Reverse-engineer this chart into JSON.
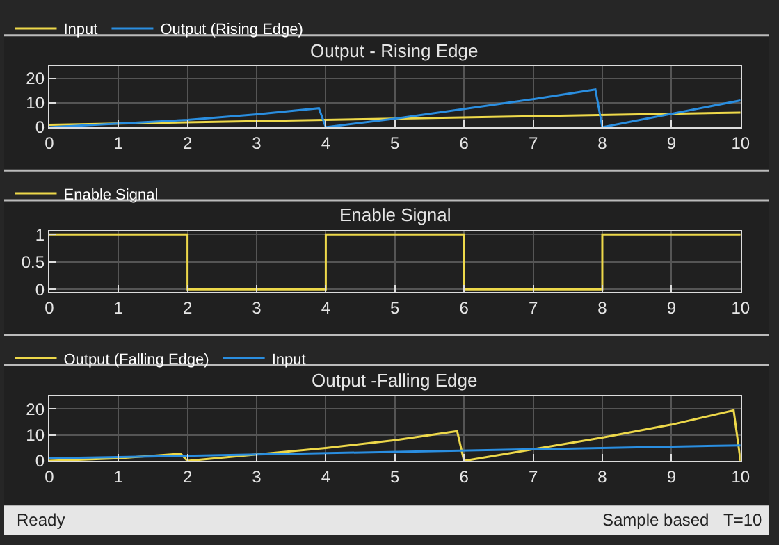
{
  "chart_data": [
    {
      "type": "line",
      "title": "Output - Rising Edge",
      "legend": "top left",
      "grid": true,
      "xlim": [
        0,
        10
      ],
      "xticks": [
        0,
        1,
        2,
        3,
        4,
        5,
        6,
        7,
        8,
        9,
        10
      ],
      "ylim": [
        0,
        25
      ],
      "yticks": [
        0,
        10,
        20
      ],
      "series": [
        {
          "name": "Input",
          "color": "#edd84a",
          "x": [
            0,
            10
          ],
          "values": [
            1,
            6
          ]
        },
        {
          "name": "Output (Rising Edge)",
          "color": "#2a8ee0",
          "x": [
            0,
            1,
            2,
            3,
            3.9,
            4,
            5,
            6,
            7,
            7.9,
            8,
            9,
            10
          ],
          "values": [
            0,
            1.5,
            3,
            5.3,
            7.8,
            0,
            3.5,
            7.5,
            11.5,
            15.5,
            0,
            5.5,
            11
          ]
        }
      ]
    },
    {
      "type": "step",
      "title": "Enable Signal",
      "legend": "top left",
      "grid": true,
      "xlim": [
        0,
        10
      ],
      "xticks": [
        0,
        1,
        2,
        3,
        4,
        5,
        6,
        7,
        8,
        9,
        10
      ],
      "ylim": [
        -0.05,
        1.06
      ],
      "yticks": [
        0,
        0.5,
        1
      ],
      "series": [
        {
          "name": "Enable Signal",
          "color": "#edd84a",
          "x": [
            0,
            2,
            4,
            6,
            8,
            10
          ],
          "values": [
            1,
            0,
            1,
            0,
            1,
            1
          ]
        }
      ]
    },
    {
      "type": "line",
      "title": "Output -Falling Edge",
      "legend": "top left",
      "grid": true,
      "xlim": [
        0,
        10
      ],
      "xticks": [
        0,
        1,
        2,
        3,
        4,
        5,
        6,
        7,
        8,
        9,
        10
      ],
      "ylim": [
        0,
        25
      ],
      "yticks": [
        0,
        10,
        20
      ],
      "series": [
        {
          "name": "Output (Falling Edge)",
          "color": "#edd84a",
          "x": [
            0,
            1,
            1.9,
            2,
            3,
            4,
            5,
            5.9,
            6,
            7,
            8,
            9,
            9.9,
            10
          ],
          "values": [
            0,
            1,
            2.8,
            0,
            2.5,
            5,
            8,
            11.5,
            0,
            4.5,
            9,
            14,
            19.5,
            0
          ]
        },
        {
          "name": "Input",
          "color": "#2a8ee0",
          "x": [
            0,
            10
          ],
          "values": [
            1,
            6
          ]
        }
      ],
      "annotations": [
        "Ready",
        "Sample based",
        "T=10"
      ]
    }
  ]
}
